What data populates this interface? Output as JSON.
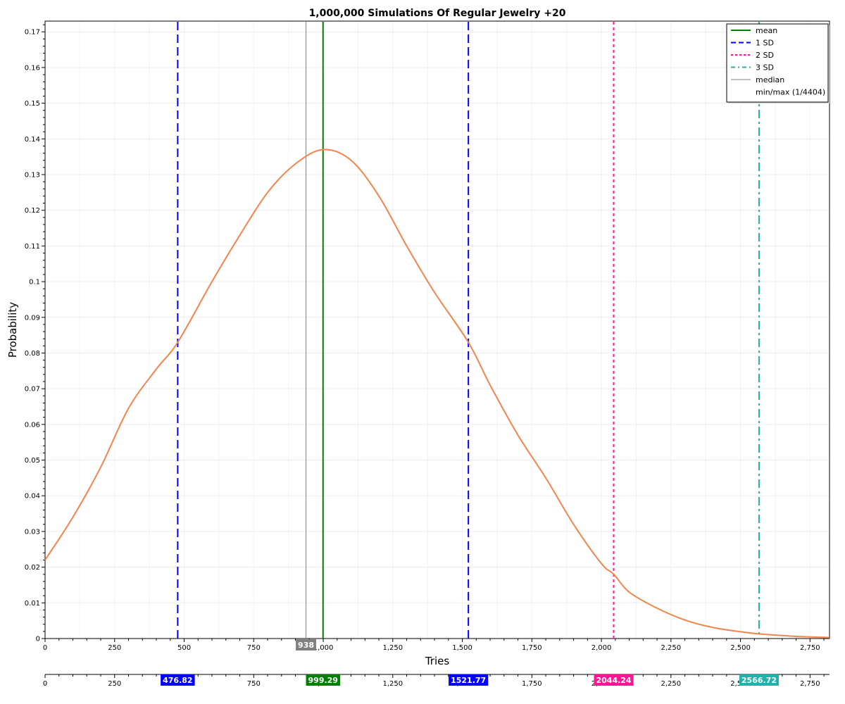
{
  "chart_data": {
    "type": "line",
    "title": "1,000,000 Simulations Of Regular Jewelry +20",
    "xlabel": "Tries",
    "ylabel": "Probability",
    "xlim": [
      0,
      2820
    ],
    "ylim": [
      0,
      0.173
    ],
    "x_ticks": [
      0,
      250,
      500,
      750,
      1000,
      1250,
      1500,
      1750,
      2000,
      2250,
      2500,
      2750
    ],
    "x_tick_labels": [
      "0",
      "250",
      "500",
      "750",
      "1,000",
      "1,250",
      "1,500",
      "1,750",
      "2,000",
      "2,250",
      "2,500",
      "2,750"
    ],
    "y_ticks": [
      0,
      0.01,
      0.02,
      0.03,
      0.04,
      0.05,
      0.06,
      0.07,
      0.08,
      0.09,
      0.1,
      0.11,
      0.12,
      0.13,
      0.14,
      0.15,
      0.16,
      0.17
    ],
    "y_tick_labels": [
      "0",
      "0.01",
      "0.02",
      "0.03",
      "0.04",
      "0.05",
      "0.06",
      "0.07",
      "0.08",
      "0.09",
      "0.1",
      "0.11",
      "0.12",
      "0.13",
      "0.14",
      "0.15",
      "0.16",
      "0.17"
    ],
    "grid": true,
    "curve": {
      "color": "#f4834c",
      "x": [
        0,
        100,
        200,
        300,
        400,
        476.82,
        600,
        700,
        800,
        900,
        999.29,
        1100,
        1200,
        1300,
        1400,
        1521.77,
        1600,
        1700,
        1800,
        1900,
        2000,
        2044.24,
        2100,
        2200,
        2300,
        2400,
        2500,
        2566.72,
        2600,
        2700,
        2820
      ],
      "y": [
        0.022,
        0.034,
        0.048,
        0.0645,
        0.0755,
        0.083,
        0.1,
        0.113,
        0.125,
        0.133,
        0.137,
        0.134,
        0.124,
        0.11,
        0.097,
        0.083,
        0.071,
        0.057,
        0.045,
        0.032,
        0.021,
        0.018,
        0.013,
        0.0085,
        0.0052,
        0.0031,
        0.0019,
        0.0013,
        0.0011,
        0.0006,
        0.0003
      ]
    },
    "vlines": [
      {
        "name": "mean",
        "x": 999.29,
        "label": "999.29",
        "color": "#008000",
        "style": "solid"
      },
      {
        "name": "1 SD",
        "x": 476.82,
        "label": "476.82",
        "color": "#0000ff",
        "style": "dashed"
      },
      {
        "name": "1 SD",
        "x": 1521.77,
        "label": "1521.77",
        "color": "#0000ff",
        "style": "dashed"
      },
      {
        "name": "2 SD",
        "x": 2044.24,
        "label": "2044.24",
        "color": "#ff1493",
        "style": "dotted"
      },
      {
        "name": "3 SD",
        "x": 2566.72,
        "label": "2566.72",
        "color": "#20b2aa",
        "style": "dashdot"
      },
      {
        "name": "median",
        "x": 938,
        "label": "938",
        "color": "#808080",
        "style": "thin"
      }
    ],
    "legend": {
      "placement": "top-right",
      "entries": [
        {
          "label": "mean",
          "color": "#008000",
          "style": "solid"
        },
        {
          "label": "1 SD",
          "color": "#0000ff",
          "style": "dashed"
        },
        {
          "label": "2 SD",
          "color": "#ff1493",
          "style": "dotted"
        },
        {
          "label": "3 SD",
          "color": "#20b2aa",
          "style": "dashdot"
        },
        {
          "label": "median",
          "color": "#808080",
          "style": "thin"
        },
        {
          "label": "min/max (1/4404)",
          "color": "",
          "style": "none"
        }
      ]
    }
  }
}
